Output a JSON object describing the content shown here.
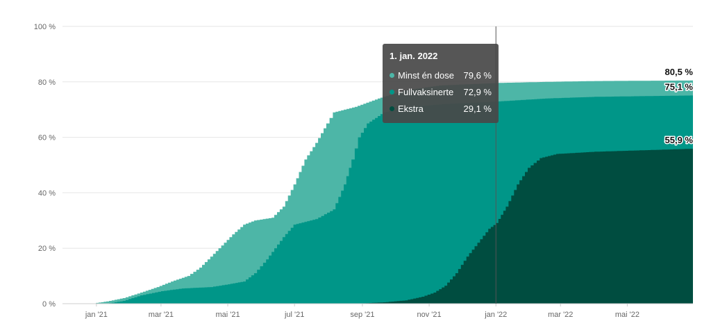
{
  "chart_data": {
    "type": "area",
    "title": "",
    "xlabel": "",
    "ylabel": "",
    "ylim": [
      0,
      100
    ],
    "yticks": [
      {
        "value": 0,
        "label": "0 %"
      },
      {
        "value": 20,
        "label": "20 %"
      },
      {
        "value": 40,
        "label": "40 %"
      },
      {
        "value": 60,
        "label": "60 %"
      },
      {
        "value": 80,
        "label": "80 %"
      },
      {
        "value": 100,
        "label": "100 %"
      }
    ],
    "xlim": [
      "2020-12-01",
      "2022-06-30"
    ],
    "xticks": [
      {
        "date": "2021-01-01",
        "label": "jan '21"
      },
      {
        "date": "2021-03-01",
        "label": "mar '21"
      },
      {
        "date": "2021-05-01",
        "label": "mai '21"
      },
      {
        "date": "2021-07-01",
        "label": "jul '21"
      },
      {
        "date": "2021-09-01",
        "label": "sep '21"
      },
      {
        "date": "2021-11-01",
        "label": "nov '21"
      },
      {
        "date": "2022-01-01",
        "label": "jan '22"
      },
      {
        "date": "2022-03-01",
        "label": "mar '22"
      },
      {
        "date": "2022-05-01",
        "label": "mai '22"
      }
    ],
    "grid": true,
    "series": [
      {
        "name": "Minst én dose",
        "color": "#4db6a7",
        "end_label": "80,5 %",
        "points": [
          [
            "2020-12-27",
            0
          ],
          [
            "2021-01-10",
            0.8
          ],
          [
            "2021-01-25",
            2
          ],
          [
            "2021-02-10",
            4
          ],
          [
            "2021-02-25",
            6
          ],
          [
            "2021-03-10",
            8
          ],
          [
            "2021-03-25",
            10
          ],
          [
            "2021-04-05",
            13
          ],
          [
            "2021-04-15",
            17
          ],
          [
            "2021-04-25",
            21
          ],
          [
            "2021-05-05",
            25
          ],
          [
            "2021-05-15",
            28.5
          ],
          [
            "2021-05-25",
            30
          ],
          [
            "2021-06-10",
            31
          ],
          [
            "2021-06-20",
            35
          ],
          [
            "2021-06-30",
            43
          ],
          [
            "2021-07-10",
            52
          ],
          [
            "2021-07-20",
            58
          ],
          [
            "2021-07-30",
            65
          ],
          [
            "2021-08-05",
            69
          ],
          [
            "2021-08-25",
            71
          ],
          [
            "2021-09-15",
            74
          ],
          [
            "2021-10-10",
            77
          ],
          [
            "2021-11-10",
            78.7
          ],
          [
            "2022-01-01",
            79.6
          ],
          [
            "2022-02-15",
            80
          ],
          [
            "2022-04-01",
            80.3
          ],
          [
            "2022-06-30",
            80.5
          ]
        ]
      },
      {
        "name": "Fullvaksinerte",
        "color": "#009688",
        "end_label": "75,1 %",
        "points": [
          [
            "2021-01-10",
            0
          ],
          [
            "2021-01-25",
            1
          ],
          [
            "2021-02-10",
            3
          ],
          [
            "2021-03-01",
            4.5
          ],
          [
            "2021-03-20",
            5.5
          ],
          [
            "2021-04-15",
            6
          ],
          [
            "2021-05-01",
            7
          ],
          [
            "2021-05-15",
            8
          ],
          [
            "2021-05-25",
            11
          ],
          [
            "2021-06-05",
            16
          ],
          [
            "2021-06-20",
            24
          ],
          [
            "2021-06-30",
            28.5
          ],
          [
            "2021-07-20",
            30.5
          ],
          [
            "2021-08-05",
            34
          ],
          [
            "2021-08-15",
            43
          ],
          [
            "2021-08-22",
            52
          ],
          [
            "2021-08-28",
            60
          ],
          [
            "2021-09-05",
            65
          ],
          [
            "2021-09-20",
            69
          ],
          [
            "2021-10-15",
            71
          ],
          [
            "2021-11-15",
            72
          ],
          [
            "2022-01-01",
            72.9
          ],
          [
            "2022-02-15",
            74
          ],
          [
            "2022-04-01",
            74.6
          ],
          [
            "2022-06-30",
            75.1
          ]
        ]
      },
      {
        "name": "Ekstra",
        "color": "#004d40",
        "end_label": "55,9 %",
        "points": [
          [
            "2021-08-25",
            0
          ],
          [
            "2021-09-20",
            0.5
          ],
          [
            "2021-10-10",
            1.2
          ],
          [
            "2021-10-25",
            2.5
          ],
          [
            "2021-11-05",
            4
          ],
          [
            "2021-11-15",
            6.5
          ],
          [
            "2021-11-25",
            11
          ],
          [
            "2021-12-05",
            17
          ],
          [
            "2021-12-15",
            22
          ],
          [
            "2021-12-25",
            27
          ],
          [
            "2022-01-01",
            29.1
          ],
          [
            "2022-01-10",
            35
          ],
          [
            "2022-01-20",
            43
          ],
          [
            "2022-01-30",
            49
          ],
          [
            "2022-02-10",
            52.5
          ],
          [
            "2022-02-25",
            54
          ],
          [
            "2022-04-01",
            54.8
          ],
          [
            "2022-06-30",
            55.9
          ]
        ]
      }
    ],
    "crosshair_date": "2022-01-01",
    "tooltip": {
      "title": "1. jan. 2022",
      "rows": [
        {
          "name": "Minst én dose",
          "value": "79,6 %",
          "color": "#4db6a7"
        },
        {
          "name": "Fullvaksinerte",
          "value": "72,9 %",
          "color": "#009688"
        },
        {
          "name": "Ekstra",
          "value": "29,1 %",
          "color": "#004d40"
        }
      ]
    }
  }
}
